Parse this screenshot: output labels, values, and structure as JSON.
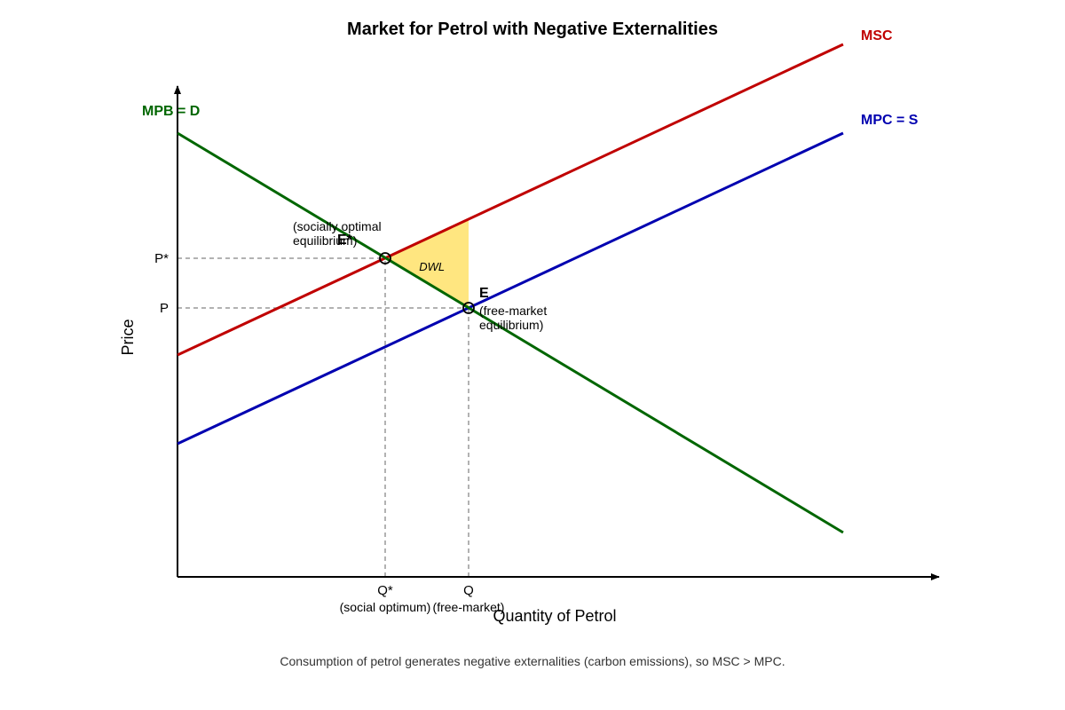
{
  "title": "Market for Petrol with Negative Externalities",
  "footnote": "Consumption of petrol generates negative externalities (carbon emissions), so MSC > MPC.",
  "chart_data": {
    "type": "line",
    "xlabel": "Quantity of Petrol",
    "ylabel": "Price",
    "xlim": [
      0,
      850
    ],
    "ylim": [
      0,
      545
    ],
    "colors": {
      "MSC": "#c00000",
      "MPC": "#0000b0",
      "MPB": "#006600",
      "dwl": "#ffe680",
      "guide": "#999999"
    },
    "series": [
      {
        "name": "MSC",
        "label": "MSC",
        "color": "#c00000",
        "x": [
          0,
          750
        ],
        "y": [
          250,
          600
        ]
      },
      {
        "name": "MPC",
        "label": "MPC = S",
        "color": "#0000b0",
        "x": [
          0,
          750
        ],
        "y": [
          150,
          500
        ]
      },
      {
        "name": "MPB",
        "label": "MPB = D",
        "color": "#006600",
        "x": [
          0,
          750
        ],
        "y": [
          500,
          50
        ]
      }
    ],
    "points": [
      {
        "name": "E*",
        "label": "E*",
        "note": [
          "(socially optimal",
          "equilibrium)"
        ],
        "x": 234,
        "y": 359
      },
      {
        "name": "E",
        "label": "E",
        "note": [
          "(free-market",
          "equilibrium)"
        ],
        "x": 328,
        "y": 303
      }
    ],
    "ticks": {
      "x": [
        {
          "value": 234,
          "label": "Q*",
          "sublabel": "(social optimum)"
        },
        {
          "value": 328,
          "label": "Q",
          "sublabel": "(free-market)"
        }
      ],
      "y": [
        {
          "value": 359,
          "label": "P*"
        },
        {
          "value": 303,
          "label": "P"
        }
      ]
    },
    "dwl": {
      "label": "DWL",
      "vertices": [
        [
          234,
          359
        ],
        [
          328,
          403
        ],
        [
          328,
          303
        ]
      ]
    }
  }
}
